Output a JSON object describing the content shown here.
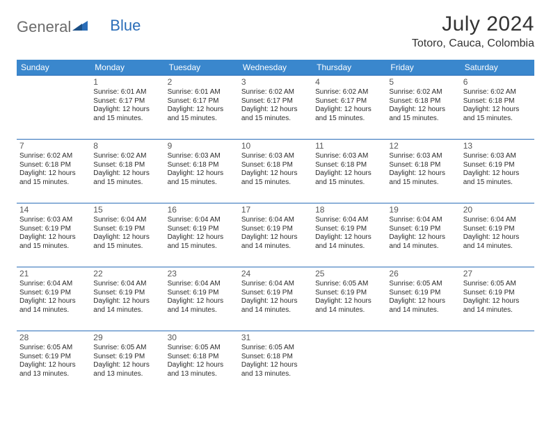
{
  "logo": {
    "word1": "General",
    "word2": "Blue"
  },
  "title": "July 2024",
  "location": "Totoro, Cauca, Colombia",
  "colors": {
    "header_bg": "#3a87cd",
    "header_text": "#ffffff",
    "cell_border": "#2a6db8",
    "logo_gray": "#6b6b6b",
    "logo_blue": "#2a6db8",
    "text_dark": "#333333",
    "daynum_color": "#575757",
    "info_color": "#2b2b2b",
    "page_bg": "#ffffff"
  },
  "fonts": {
    "title_size": 30,
    "location_size": 16,
    "dow_size": 12,
    "daynum_size": 12,
    "info_size": 10
  },
  "days_of_week": [
    "Sunday",
    "Monday",
    "Tuesday",
    "Wednesday",
    "Thursday",
    "Friday",
    "Saturday"
  ],
  "weeks": [
    [
      {
        "empty": true
      },
      {
        "day": "1",
        "sunrise": "Sunrise: 6:01 AM",
        "sunset": "Sunset: 6:17 PM",
        "daylight": "Daylight: 12 hours and 15 minutes."
      },
      {
        "day": "2",
        "sunrise": "Sunrise: 6:01 AM",
        "sunset": "Sunset: 6:17 PM",
        "daylight": "Daylight: 12 hours and 15 minutes."
      },
      {
        "day": "3",
        "sunrise": "Sunrise: 6:02 AM",
        "sunset": "Sunset: 6:17 PM",
        "daylight": "Daylight: 12 hours and 15 minutes."
      },
      {
        "day": "4",
        "sunrise": "Sunrise: 6:02 AM",
        "sunset": "Sunset: 6:17 PM",
        "daylight": "Daylight: 12 hours and 15 minutes."
      },
      {
        "day": "5",
        "sunrise": "Sunrise: 6:02 AM",
        "sunset": "Sunset: 6:18 PM",
        "daylight": "Daylight: 12 hours and 15 minutes."
      },
      {
        "day": "6",
        "sunrise": "Sunrise: 6:02 AM",
        "sunset": "Sunset: 6:18 PM",
        "daylight": "Daylight: 12 hours and 15 minutes."
      }
    ],
    [
      {
        "day": "7",
        "sunrise": "Sunrise: 6:02 AM",
        "sunset": "Sunset: 6:18 PM",
        "daylight": "Daylight: 12 hours and 15 minutes."
      },
      {
        "day": "8",
        "sunrise": "Sunrise: 6:02 AM",
        "sunset": "Sunset: 6:18 PM",
        "daylight": "Daylight: 12 hours and 15 minutes."
      },
      {
        "day": "9",
        "sunrise": "Sunrise: 6:03 AM",
        "sunset": "Sunset: 6:18 PM",
        "daylight": "Daylight: 12 hours and 15 minutes."
      },
      {
        "day": "10",
        "sunrise": "Sunrise: 6:03 AM",
        "sunset": "Sunset: 6:18 PM",
        "daylight": "Daylight: 12 hours and 15 minutes."
      },
      {
        "day": "11",
        "sunrise": "Sunrise: 6:03 AM",
        "sunset": "Sunset: 6:18 PM",
        "daylight": "Daylight: 12 hours and 15 minutes."
      },
      {
        "day": "12",
        "sunrise": "Sunrise: 6:03 AM",
        "sunset": "Sunset: 6:18 PM",
        "daylight": "Daylight: 12 hours and 15 minutes."
      },
      {
        "day": "13",
        "sunrise": "Sunrise: 6:03 AM",
        "sunset": "Sunset: 6:19 PM",
        "daylight": "Daylight: 12 hours and 15 minutes."
      }
    ],
    [
      {
        "day": "14",
        "sunrise": "Sunrise: 6:03 AM",
        "sunset": "Sunset: 6:19 PM",
        "daylight": "Daylight: 12 hours and 15 minutes."
      },
      {
        "day": "15",
        "sunrise": "Sunrise: 6:04 AM",
        "sunset": "Sunset: 6:19 PM",
        "daylight": "Daylight: 12 hours and 15 minutes."
      },
      {
        "day": "16",
        "sunrise": "Sunrise: 6:04 AM",
        "sunset": "Sunset: 6:19 PM",
        "daylight": "Daylight: 12 hours and 15 minutes."
      },
      {
        "day": "17",
        "sunrise": "Sunrise: 6:04 AM",
        "sunset": "Sunset: 6:19 PM",
        "daylight": "Daylight: 12 hours and 14 minutes."
      },
      {
        "day": "18",
        "sunrise": "Sunrise: 6:04 AM",
        "sunset": "Sunset: 6:19 PM",
        "daylight": "Daylight: 12 hours and 14 minutes."
      },
      {
        "day": "19",
        "sunrise": "Sunrise: 6:04 AM",
        "sunset": "Sunset: 6:19 PM",
        "daylight": "Daylight: 12 hours and 14 minutes."
      },
      {
        "day": "20",
        "sunrise": "Sunrise: 6:04 AM",
        "sunset": "Sunset: 6:19 PM",
        "daylight": "Daylight: 12 hours and 14 minutes."
      }
    ],
    [
      {
        "day": "21",
        "sunrise": "Sunrise: 6:04 AM",
        "sunset": "Sunset: 6:19 PM",
        "daylight": "Daylight: 12 hours and 14 minutes."
      },
      {
        "day": "22",
        "sunrise": "Sunrise: 6:04 AM",
        "sunset": "Sunset: 6:19 PM",
        "daylight": "Daylight: 12 hours and 14 minutes."
      },
      {
        "day": "23",
        "sunrise": "Sunrise: 6:04 AM",
        "sunset": "Sunset: 6:19 PM",
        "daylight": "Daylight: 12 hours and 14 minutes."
      },
      {
        "day": "24",
        "sunrise": "Sunrise: 6:04 AM",
        "sunset": "Sunset: 6:19 PM",
        "daylight": "Daylight: 12 hours and 14 minutes."
      },
      {
        "day": "25",
        "sunrise": "Sunrise: 6:05 AM",
        "sunset": "Sunset: 6:19 PM",
        "daylight": "Daylight: 12 hours and 14 minutes."
      },
      {
        "day": "26",
        "sunrise": "Sunrise: 6:05 AM",
        "sunset": "Sunset: 6:19 PM",
        "daylight": "Daylight: 12 hours and 14 minutes."
      },
      {
        "day": "27",
        "sunrise": "Sunrise: 6:05 AM",
        "sunset": "Sunset: 6:19 PM",
        "daylight": "Daylight: 12 hours and 14 minutes."
      }
    ],
    [
      {
        "day": "28",
        "sunrise": "Sunrise: 6:05 AM",
        "sunset": "Sunset: 6:19 PM",
        "daylight": "Daylight: 12 hours and 13 minutes."
      },
      {
        "day": "29",
        "sunrise": "Sunrise: 6:05 AM",
        "sunset": "Sunset: 6:19 PM",
        "daylight": "Daylight: 12 hours and 13 minutes."
      },
      {
        "day": "30",
        "sunrise": "Sunrise: 6:05 AM",
        "sunset": "Sunset: 6:18 PM",
        "daylight": "Daylight: 12 hours and 13 minutes."
      },
      {
        "day": "31",
        "sunrise": "Sunrise: 6:05 AM",
        "sunset": "Sunset: 6:18 PM",
        "daylight": "Daylight: 12 hours and 13 minutes."
      },
      {
        "empty": true
      },
      {
        "empty": true
      },
      {
        "empty": true
      }
    ]
  ]
}
